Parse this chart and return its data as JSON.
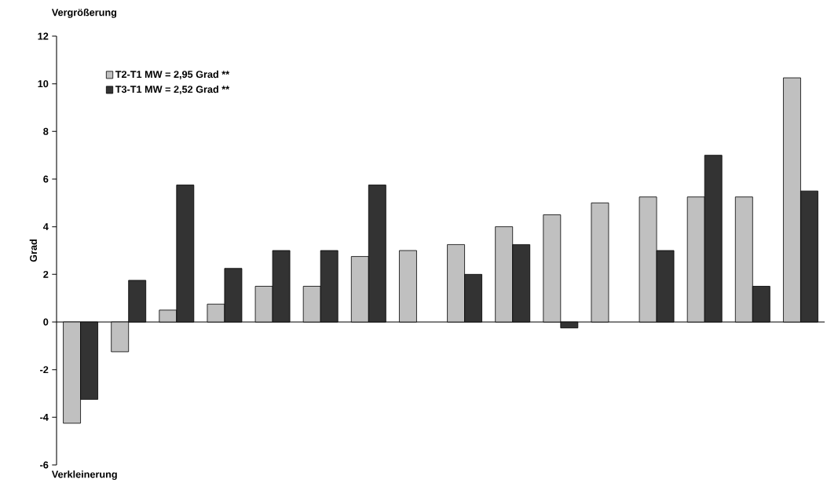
{
  "chart_data": {
    "type": "bar",
    "ylabel": "Grad",
    "annotations": [
      "Vergrößerung",
      "Verkleinerung"
    ],
    "categories": [
      null,
      null,
      null,
      null,
      null,
      null,
      null,
      null,
      null,
      null,
      null,
      null,
      null,
      null,
      null,
      null
    ],
    "series": [
      {
        "name": "T2-T1 MW = 2,95 Grad  **",
        "color": "#c0c0c0",
        "values": [
          -4.25,
          -1.25,
          0.5,
          0.75,
          1.5,
          1.5,
          2.75,
          3,
          3.25,
          4,
          4.5,
          5,
          5.25,
          5.25,
          5.25,
          10.25
        ]
      },
      {
        "name": "T3-T1 MW = 2,52 Grad  **",
        "color": "#333333",
        "values": [
          -3.25,
          1.75,
          5.75,
          2.25,
          3,
          3,
          5.75,
          null,
          2,
          3.25,
          -0.25,
          null,
          3,
          7,
          1.5,
          5.5
        ]
      }
    ],
    "ylim": [
      -6,
      12
    ],
    "yticks": [
      -6,
      -4,
      -2,
      0,
      2,
      4,
      6,
      8,
      10,
      12
    ],
    "tick_labels": "y",
    "legend": "top left"
  }
}
